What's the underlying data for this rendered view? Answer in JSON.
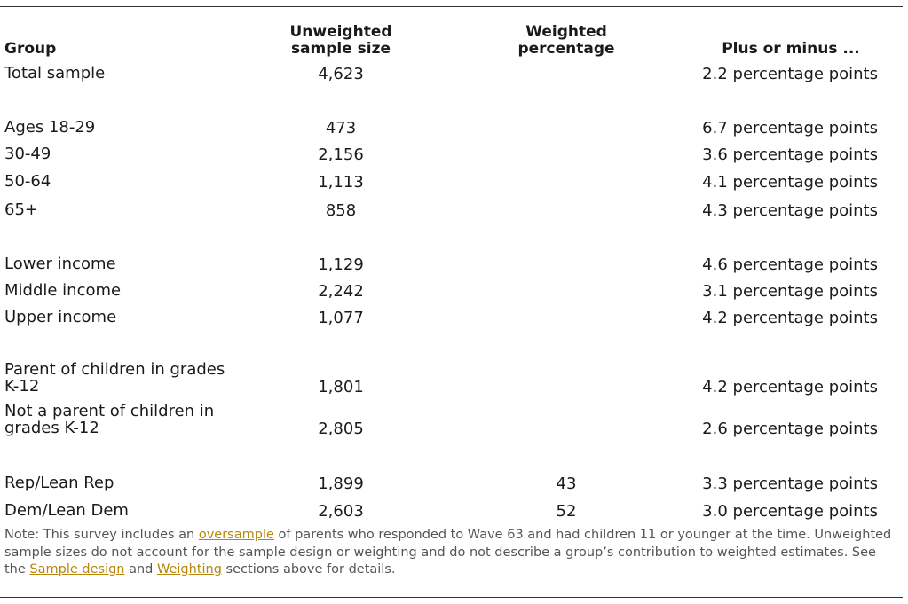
{
  "headers": {
    "group": "Group",
    "unweighted_line1": "Unweighted",
    "unweighted_line2": "sample size",
    "weighted_line1": "Weighted",
    "weighted_line2": "percentage",
    "moe": "Plus or minus ..."
  },
  "rows": [
    {
      "group_line1": "Total sample",
      "group_line2": "",
      "n": "4,623",
      "weighted": "",
      "moe": "2.2 percentage points"
    },
    {
      "group_line1": "Ages 18-29",
      "group_line2": "",
      "n": "473",
      "weighted": "",
      "moe": "6.7 percentage points"
    },
    {
      "group_line1": "30-49",
      "group_line2": "",
      "n": "2,156",
      "weighted": "",
      "moe": "3.6 percentage points"
    },
    {
      "group_line1": "50-64",
      "group_line2": "",
      "n": "1,113",
      "weighted": "",
      "moe": "4.1 percentage points"
    },
    {
      "group_line1": "65+",
      "group_line2": "",
      "n": "858",
      "weighted": "",
      "moe": "4.3 percentage points"
    },
    {
      "group_line1": "Lower income",
      "group_line2": "",
      "n": "1,129",
      "weighted": "",
      "moe": "4.6 percentage points"
    },
    {
      "group_line1": "Middle income",
      "group_line2": "",
      "n": "2,242",
      "weighted": "",
      "moe": "3.1 percentage points"
    },
    {
      "group_line1": "Upper income",
      "group_line2": "",
      "n": "1,077",
      "weighted": "",
      "moe": "4.2 percentage points"
    },
    {
      "group_line1": "Parent of children in grades",
      "group_line2": "K-12",
      "n": "1,801",
      "weighted": "",
      "moe": "4.2 percentage points"
    },
    {
      "group_line1": "Not a parent of children in",
      "group_line2": "grades K-12",
      "n": "2,805",
      "weighted": "",
      "moe": "2.6 percentage points"
    },
    {
      "group_line1": "Rep/Lean Rep",
      "group_line2": "",
      "n": "1,899",
      "weighted": "43",
      "moe": "3.3 percentage points"
    },
    {
      "group_line1": "Dem/Lean Dem",
      "group_line2": "",
      "n": "2,603",
      "weighted": "52",
      "moe": "3.0 percentage points"
    }
  ],
  "note": {
    "prefix": "Note: This survey includes an ",
    "link_oversample": "oversample",
    "middle": " of parents who responded to Wave 63 and had children 11 or younger at the time. Unweighted sample sizes do not account for the sample design or weighting and do not describe a group’s contribution to weighted estimates. See the ",
    "link_sample_design": "Sample design",
    "and": " and ",
    "link_weighting": "Weighting",
    "suffix": " sections above for details."
  }
}
